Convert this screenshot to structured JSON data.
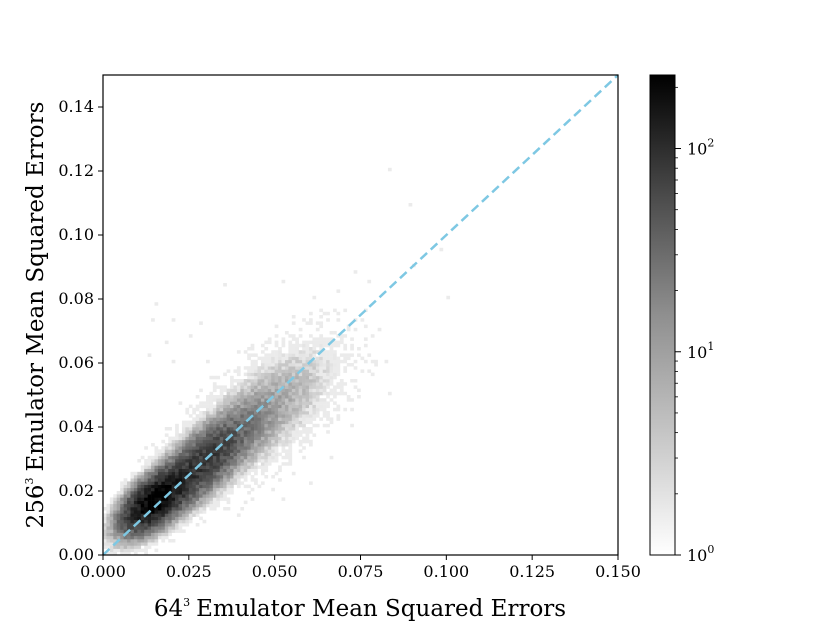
{
  "chart_data": {
    "type": "heatmap",
    "subtype": "2d-histogram",
    "xlabel": {
      "base": "64",
      "exponent": "3",
      "text": "Emulator Mean Squared Errors"
    },
    "ylabel": {
      "base": "256",
      "exponent": "3",
      "text": "Emulator Mean Squared Errors"
    },
    "xlim": [
      0.0,
      0.15
    ],
    "ylim": [
      0.0,
      0.15
    ],
    "x_ticks": [
      "0.000",
      "0.025",
      "0.050",
      "0.075",
      "0.100",
      "0.125",
      "0.150"
    ],
    "y_ticks": [
      "0.00",
      "0.02",
      "0.04",
      "0.06",
      "0.08",
      "0.10",
      "0.12",
      "0.14"
    ],
    "grid": false,
    "reference_line": {
      "style": "dashed",
      "color": "#7ec8e3",
      "from": [
        0.0,
        0.0
      ],
      "to": [
        0.15,
        0.15
      ]
    },
    "colormap": "gray_r",
    "colorbar": {
      "scale": "log",
      "range": [
        1,
        230
      ],
      "ticks": [
        {
          "base": "10",
          "exponent": "0",
          "value": 1
        },
        {
          "base": "10",
          "exponent": "1",
          "value": 10
        },
        {
          "base": "10",
          "exponent": "2",
          "value": 100
        }
      ]
    },
    "density_clusters": [
      {
        "x": 0.015,
        "y": 0.017,
        "sx": 0.0045,
        "sy": 0.0045,
        "rho": 0.6,
        "peak": 230
      },
      {
        "x": 0.027,
        "y": 0.027,
        "sx": 0.0085,
        "sy": 0.0085,
        "rho": 0.82,
        "peak": 70
      },
      {
        "x": 0.045,
        "y": 0.043,
        "sx": 0.012,
        "sy": 0.012,
        "rho": 0.7,
        "peak": 5
      }
    ],
    "outliers": [
      [
        0.083,
        0.12
      ],
      [
        0.089,
        0.109
      ],
      [
        0.1,
        0.08
      ],
      [
        0.098,
        0.095
      ],
      [
        0.09,
        0.09
      ],
      [
        0.077,
        0.085
      ],
      [
        0.073,
        0.088
      ],
      [
        0.068,
        0.082
      ],
      [
        0.082,
        0.06
      ],
      [
        0.083,
        0.05
      ],
      [
        0.079,
        0.06
      ],
      [
        0.061,
        0.08
      ],
      [
        0.035,
        0.084
      ],
      [
        0.015,
        0.078
      ],
      [
        0.014,
        0.073
      ],
      [
        0.013,
        0.062
      ],
      [
        0.07,
        0.065
      ],
      [
        0.075,
        0.057
      ],
      [
        0.06,
        0.075
      ],
      [
        0.052,
        0.085
      ],
      [
        0.056,
        0.05
      ],
      [
        0.072,
        0.04
      ],
      [
        0.066,
        0.03
      ],
      [
        0.06,
        0.022
      ],
      [
        0.052,
        0.017
      ],
      [
        0.049,
        0.02
      ],
      [
        0.044,
        0.025
      ],
      [
        0.039,
        0.012
      ],
      [
        0.033,
        0.015
      ],
      [
        0.02,
        0.073
      ],
      [
        0.025,
        0.068
      ],
      [
        0.028,
        0.072
      ],
      [
        0.03,
        0.06
      ],
      [
        0.02,
        0.06
      ],
      [
        0.018,
        0.066
      ]
    ]
  }
}
